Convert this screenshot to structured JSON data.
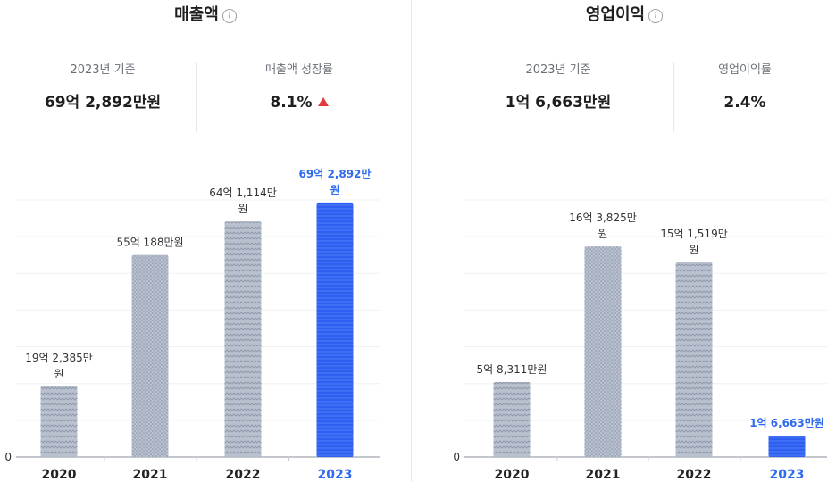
{
  "colors": {
    "highlight": "#2f5ff0",
    "muted_bar": "#b9c1cf",
    "up": "#e5383b"
  },
  "panels": [
    {
      "title": "매출액",
      "stats": [
        {
          "label": "2023년 기준",
          "value": "69억 2,892만원"
        },
        {
          "label": "매출액 성장률",
          "value": "8.1%",
          "trend": "up"
        }
      ]
    },
    {
      "title": "영업이익",
      "stats": [
        {
          "label": "2023년 기준",
          "value": "1억 6,663만원"
        },
        {
          "label": "영업이익률",
          "value": "2.4%"
        }
      ]
    }
  ],
  "chart_data": [
    {
      "type": "bar",
      "categories": [
        "2020",
        "2021",
        "2022",
        "2023"
      ],
      "values": [
        1923850000,
        5501880000,
        6411140000,
        6928920000
      ],
      "labels": [
        "19억 2,385만원",
        "55억 188만원",
        "64억 1,114만원",
        "69억 2,892만원"
      ],
      "highlight_index": 3,
      "ylim": [
        0,
        7000000000
      ],
      "zero_label": "0",
      "grid": true
    },
    {
      "type": "bar",
      "categories": [
        "2020",
        "2021",
        "2022",
        "2023"
      ],
      "values": [
        583110000,
        1638250000,
        1515190000,
        166630000
      ],
      "labels": [
        "5억 8,311만원",
        "16억 3,825만원",
        "15억 1,519만원",
        "1억 6,663만원"
      ],
      "highlight_index": 3,
      "ylim": [
        0,
        2000000000
      ],
      "zero_label": "0",
      "grid": true
    }
  ]
}
